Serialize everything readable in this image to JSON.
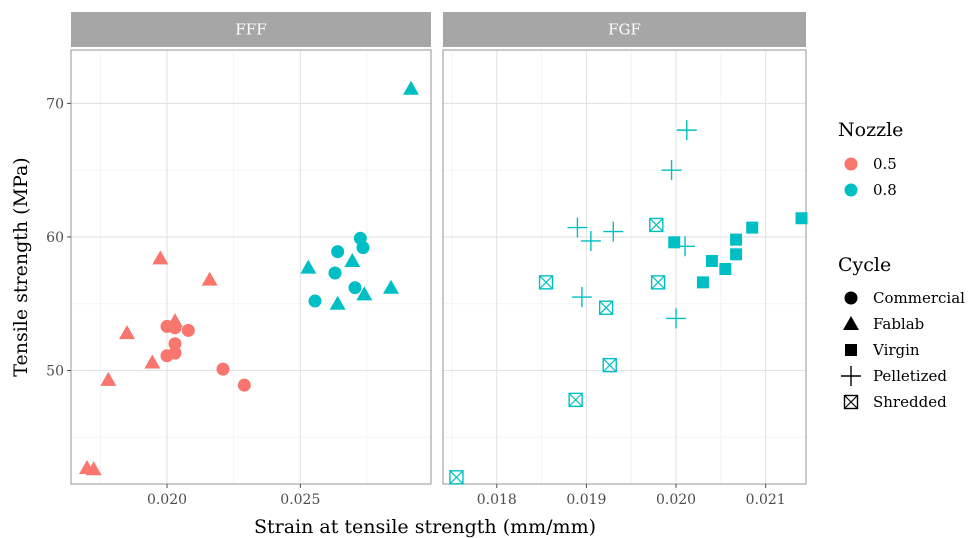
{
  "chart_data": {
    "type": "scatter",
    "xlabel": "Strain at tensile strength (mm/mm)",
    "ylabel": "Tensile strength (MPa)",
    "ylim": [
      41.5,
      74
    ],
    "yticks": [
      50,
      60,
      70
    ],
    "grid": true,
    "legend_position": "right",
    "colors": {
      "0.5": "#F8766D",
      "0.8": "#00BFC4"
    },
    "legends": [
      {
        "title": "Nozzle",
        "items": [
          {
            "label": "0.5",
            "key": "0.5"
          },
          {
            "label": "0.8",
            "key": "0.8"
          }
        ]
      },
      {
        "title": "Cycle",
        "items": [
          {
            "label": "Commercial",
            "shape": "circle"
          },
          {
            "label": "Fablab",
            "shape": "triangle"
          },
          {
            "label": "Virgin",
            "shape": "square"
          },
          {
            "label": "Pelletized",
            "shape": "plus"
          },
          {
            "label": "Shredded",
            "shape": "square-x"
          }
        ]
      }
    ],
    "panels": [
      {
        "strip": "FFF",
        "xlim": [
          0.0164,
          0.0299
        ],
        "xticks": [
          0.02,
          0.025
        ],
        "xtick_labels": [
          "0.020",
          "0.025"
        ],
        "points": [
          {
            "x": 0.02,
            "y": 53.3,
            "nozzle": "0.5",
            "cycle": "Commercial"
          },
          {
            "x": 0.0203,
            "y": 53.2,
            "nozzle": "0.5",
            "cycle": "Commercial"
          },
          {
            "x": 0.0208,
            "y": 53.0,
            "nozzle": "0.5",
            "cycle": "Commercial"
          },
          {
            "x": 0.0203,
            "y": 52.0,
            "nozzle": "0.5",
            "cycle": "Commercial"
          },
          {
            "x": 0.02,
            "y": 51.1,
            "nozzle": "0.5",
            "cycle": "Commercial"
          },
          {
            "x": 0.0203,
            "y": 51.3,
            "nozzle": "0.5",
            "cycle": "Commercial"
          },
          {
            "x": 0.0221,
            "y": 50.1,
            "nozzle": "0.5",
            "cycle": "Commercial"
          },
          {
            "x": 0.0229,
            "y": 48.9,
            "nozzle": "0.5",
            "cycle": "Commercial"
          },
          {
            "x": 0.01975,
            "y": 58.4,
            "nozzle": "0.5",
            "cycle": "Fablab"
          },
          {
            "x": 0.0216,
            "y": 56.8,
            "nozzle": "0.5",
            "cycle": "Fablab"
          },
          {
            "x": 0.0203,
            "y": 53.7,
            "nozzle": "0.5",
            "cycle": "Fablab"
          },
          {
            "x": 0.0185,
            "y": 52.8,
            "nozzle": "0.5",
            "cycle": "Fablab"
          },
          {
            "x": 0.01945,
            "y": 50.6,
            "nozzle": "0.5",
            "cycle": "Fablab"
          },
          {
            "x": 0.0178,
            "y": 49.3,
            "nozzle": "0.5",
            "cycle": "Fablab"
          },
          {
            "x": 0.017,
            "y": 42.7,
            "nozzle": "0.5",
            "cycle": "Fablab"
          },
          {
            "x": 0.01725,
            "y": 42.6,
            "nozzle": "0.5",
            "cycle": "Fablab"
          },
          {
            "x": 0.02725,
            "y": 59.9,
            "nozzle": "0.8",
            "cycle": "Commercial"
          },
          {
            "x": 0.02735,
            "y": 59.2,
            "nozzle": "0.8",
            "cycle": "Commercial"
          },
          {
            "x": 0.0264,
            "y": 58.9,
            "nozzle": "0.8",
            "cycle": "Commercial"
          },
          {
            "x": 0.0263,
            "y": 57.3,
            "nozzle": "0.8",
            "cycle": "Commercial"
          },
          {
            "x": 0.02705,
            "y": 56.2,
            "nozzle": "0.8",
            "cycle": "Commercial"
          },
          {
            "x": 0.02555,
            "y": 55.2,
            "nozzle": "0.8",
            "cycle": "Commercial"
          },
          {
            "x": 0.0253,
            "y": 57.7,
            "nozzle": "0.8",
            "cycle": "Fablab"
          },
          {
            "x": 0.02695,
            "y": 58.2,
            "nozzle": "0.8",
            "cycle": "Fablab"
          },
          {
            "x": 0.0284,
            "y": 56.2,
            "nozzle": "0.8",
            "cycle": "Fablab"
          },
          {
            "x": 0.0274,
            "y": 55.7,
            "nozzle": "0.8",
            "cycle": "Fablab"
          },
          {
            "x": 0.0264,
            "y": 55.0,
            "nozzle": "0.8",
            "cycle": "Fablab"
          },
          {
            "x": 0.02915,
            "y": 71.1,
            "nozzle": "0.8",
            "cycle": "Fablab"
          }
        ]
      },
      {
        "strip": "FGF",
        "xlim": [
          0.0174,
          0.02145
        ],
        "xticks": [
          0.018,
          0.019,
          0.02,
          0.021
        ],
        "xtick_labels": [
          "0.018",
          "0.019",
          "0.020",
          "0.021"
        ],
        "points": [
          {
            "x": 0.0214,
            "y": 61.4,
            "nozzle": "0.8",
            "cycle": "Virgin"
          },
          {
            "x": 0.02085,
            "y": 60.7,
            "nozzle": "0.8",
            "cycle": "Virgin"
          },
          {
            "x": 0.02067,
            "y": 59.8,
            "nozzle": "0.8",
            "cycle": "Virgin"
          },
          {
            "x": 0.01998,
            "y": 59.6,
            "nozzle": "0.8",
            "cycle": "Virgin"
          },
          {
            "x": 0.02067,
            "y": 58.7,
            "nozzle": "0.8",
            "cycle": "Virgin"
          },
          {
            "x": 0.0204,
            "y": 58.2,
            "nozzle": "0.8",
            "cycle": "Virgin"
          },
          {
            "x": 0.02055,
            "y": 57.6,
            "nozzle": "0.8",
            "cycle": "Virgin"
          },
          {
            "x": 0.0203,
            "y": 56.6,
            "nozzle": "0.8",
            "cycle": "Virgin"
          },
          {
            "x": 0.02012,
            "y": 68.0,
            "nozzle": "0.8",
            "cycle": "Pelletized"
          },
          {
            "x": 0.01995,
            "y": 65.0,
            "nozzle": "0.8",
            "cycle": "Pelletized"
          },
          {
            "x": 0.0189,
            "y": 60.7,
            "nozzle": "0.8",
            "cycle": "Pelletized"
          },
          {
            "x": 0.0193,
            "y": 60.4,
            "nozzle": "0.8",
            "cycle": "Pelletized"
          },
          {
            "x": 0.01905,
            "y": 59.7,
            "nozzle": "0.8",
            "cycle": "Pelletized"
          },
          {
            "x": 0.0201,
            "y": 59.3,
            "nozzle": "0.8",
            "cycle": "Pelletized"
          },
          {
            "x": 0.01895,
            "y": 55.5,
            "nozzle": "0.8",
            "cycle": "Pelletized"
          },
          {
            "x": 0.02,
            "y": 53.9,
            "nozzle": "0.8",
            "cycle": "Pelletized"
          },
          {
            "x": 0.01978,
            "y": 60.9,
            "nozzle": "0.8",
            "cycle": "Shredded"
          },
          {
            "x": 0.01855,
            "y": 56.6,
            "nozzle": "0.8",
            "cycle": "Shredded"
          },
          {
            "x": 0.0198,
            "y": 56.6,
            "nozzle": "0.8",
            "cycle": "Shredded"
          },
          {
            "x": 0.01922,
            "y": 54.7,
            "nozzle": "0.8",
            "cycle": "Shredded"
          },
          {
            "x": 0.01926,
            "y": 50.4,
            "nozzle": "0.8",
            "cycle": "Shredded"
          },
          {
            "x": 0.01888,
            "y": 47.8,
            "nozzle": "0.8",
            "cycle": "Shredded"
          },
          {
            "x": 0.01755,
            "y": 42.0,
            "nozzle": "0.8",
            "cycle": "Shredded"
          }
        ]
      }
    ]
  }
}
